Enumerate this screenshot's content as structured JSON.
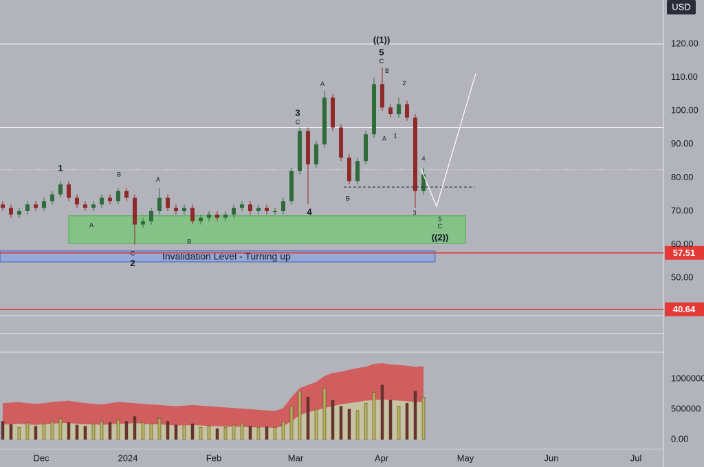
{
  "chart_data": {
    "type": "candlestick",
    "currency": "USD",
    "xlim": [
      -0.33,
      80.08
    ],
    "xticks": [
      {
        "value": 4.67,
        "label": "Dec"
      },
      {
        "value": 15.17,
        "label": "2024"
      },
      {
        "value": 25.58,
        "label": "Feb"
      },
      {
        "value": 35.5,
        "label": "Mar"
      },
      {
        "value": 45.92,
        "label": "Apr"
      },
      {
        "value": 56.08,
        "label": "May"
      },
      {
        "value": 66.5,
        "label": "Jun"
      },
      {
        "value": 76.75,
        "label": "Jul"
      }
    ],
    "ylim": [
      27.82,
      133.17
    ],
    "yticks": [
      {
        "value": 120,
        "label": "120.00"
      },
      {
        "value": 110,
        "label": "110.00"
      },
      {
        "value": 100,
        "label": "100.00"
      },
      {
        "value": 90,
        "label": "90.00"
      },
      {
        "value": 80,
        "label": "80.00"
      },
      {
        "value": 70,
        "label": "70.00"
      },
      {
        "value": 60,
        "label": "60.00"
      },
      {
        "value": 50,
        "label": "50.00"
      }
    ],
    "up_color": "#2e6b3a",
    "down_color": "#8e2a2a",
    "open": [
      72,
      71,
      69,
      70,
      72,
      71,
      73,
      75,
      78,
      74,
      72,
      71,
      72,
      74,
      73,
      76,
      74,
      66,
      67,
      70,
      74,
      71,
      70,
      71,
      67,
      68,
      69,
      68,
      69,
      71,
      72,
      70,
      71,
      70,
      70,
      73,
      82,
      94,
      84,
      90,
      104,
      95,
      86,
      79,
      85,
      93,
      108,
      101,
      99,
      102,
      98,
      76
    ],
    "high": [
      73,
      72,
      71,
      73,
      73,
      74,
      76,
      79,
      79,
      75,
      73,
      73,
      75,
      75,
      77,
      77,
      75,
      68,
      71,
      77,
      75,
      72,
      72,
      72,
      69,
      70,
      70,
      70,
      72,
      73,
      73,
      72,
      72,
      71,
      74,
      83,
      95,
      95,
      91,
      106,
      105,
      96,
      87,
      86,
      94,
      110,
      113,
      102,
      104,
      103,
      99,
      83
    ],
    "low": [
      70,
      68,
      68,
      69,
      70,
      70,
      72,
      74,
      73,
      71,
      70,
      70,
      71,
      72,
      72,
      73,
      60,
      65,
      66,
      69,
      70,
      69,
      69,
      66,
      66,
      67,
      67,
      67,
      68,
      70,
      69,
      69,
      69,
      69,
      69,
      72,
      81,
      72,
      83,
      89,
      94,
      85,
      78,
      78,
      84,
      92,
      100,
      98,
      98,
      97,
      71,
      75
    ],
    "close": [
      71,
      69,
      70,
      72,
      71,
      73,
      75,
      78,
      74,
      72,
      71,
      72,
      74,
      73,
      76,
      74,
      66,
      67,
      70,
      74,
      71,
      70,
      71,
      67,
      68,
      69,
      68,
      69,
      71,
      72,
      70,
      71,
      70,
      70,
      73,
      82,
      94,
      84,
      90,
      104,
      95,
      86,
      79,
      85,
      93,
      108,
      101,
      99,
      102,
      98,
      76,
      81
    ],
    "levels": [
      120,
      95
    ],
    "price_line": 82.4,
    "dashed_level": {
      "value": 77.2,
      "from": 41.33,
      "to": 57.17
    },
    "red_levels": [
      {
        "value": 57.51,
        "label": "57.51"
      },
      {
        "value": 40.64,
        "label": "40.64"
      }
    ],
    "zones": [
      {
        "from": 8,
        "to": 56.08,
        "low": 60.4,
        "high": 68.6,
        "color": "#7cc47f"
      },
      {
        "from": -0.33,
        "to": 52.4,
        "low": 54.8,
        "high": 58.1,
        "color": "#8fa7d8",
        "text": "Invalidation Level - Turning up"
      }
    ],
    "projection": {
      "x": [
        50.67,
        52.58,
        57.33
      ],
      "values": [
        82.8,
        71.4,
        111.2
      ]
    },
    "annotations": [
      {
        "text": "1",
        "index": 7,
        "price": 82.6,
        "size": "large"
      },
      {
        "text": "A",
        "index": 10.75,
        "price": 65.7,
        "size": "small"
      },
      {
        "text": "B",
        "index": 14.1,
        "price": 80.9,
        "size": "small"
      },
      {
        "text": "A",
        "index": 18.83,
        "price": 79.3,
        "size": "small"
      },
      {
        "text": "C",
        "index": 15.75,
        "price": 57.2,
        "size": "small"
      },
      {
        "text": "2",
        "index": 15.75,
        "price": 54.2,
        "size": "large"
      },
      {
        "text": "B",
        "index": 22.6,
        "price": 60.7,
        "size": "small"
      },
      {
        "text": "3",
        "index": 35.75,
        "price": 99.2,
        "size": "large"
      },
      {
        "text": "C",
        "index": 35.75,
        "price": 96.5,
        "size": "small"
      },
      {
        "text": "4",
        "index": 37.17,
        "price": 69.6,
        "size": "large"
      },
      {
        "text": "A",
        "index": 38.75,
        "price": 107.9,
        "size": "small"
      },
      {
        "text": "B",
        "index": 41.83,
        "price": 73.7,
        "size": "small"
      },
      {
        "text": "((1))",
        "index": 45.92,
        "price": 121,
        "size": "large"
      },
      {
        "text": "5",
        "index": 45.92,
        "price": 117.3,
        "size": "large"
      },
      {
        "text": "C",
        "index": 45.92,
        "price": 114.7,
        "size": "small"
      },
      {
        "text": "B",
        "index": 46.58,
        "price": 111.8,
        "size": "small"
      },
      {
        "text": "2",
        "index": 48.67,
        "price": 108.1,
        "size": "small"
      },
      {
        "text": "A",
        "index": 46.25,
        "price": 91.6,
        "size": "small"
      },
      {
        "text": "1",
        "index": 47.58,
        "price": 92.4,
        "size": "small"
      },
      {
        "text": "4",
        "index": 51,
        "price": 85.6,
        "size": "small"
      },
      {
        "text": "3",
        "index": 49.92,
        "price": 69.4,
        "size": "small"
      },
      {
        "text": "5",
        "index": 53,
        "price": 67.5,
        "size": "small"
      },
      {
        "text": "C",
        "index": 53,
        "price": 65.3,
        "size": "small"
      },
      {
        "text": "((2))",
        "index": 53,
        "price": 62,
        "size": "large"
      }
    ],
    "volume": {
      "ylim": [
        -238636,
        1443182
      ],
      "yticks": [
        1000000,
        500000,
        {
          "value": 0,
          "label": "0.00"
        }
      ],
      "values": [
        300000,
        250000,
        200000,
        280000,
        220000,
        260000,
        300000,
        350000,
        280000,
        240000,
        220000,
        260000,
        300000,
        280000,
        320000,
        300000,
        380000,
        280000,
        260000,
        350000,
        300000,
        240000,
        220000,
        260000,
        200000,
        220000,
        180000,
        200000,
        240000,
        260000,
        220000,
        200000,
        210000,
        200000,
        300000,
        550000,
        800000,
        700000,
        500000,
        850000,
        650000,
        550000,
        500000,
        480000,
        600000,
        780000,
        900000,
        650000,
        550000,
        600000,
        800000,
        700000
      ],
      "up_color": "#b8b25a",
      "down_color": "#6e2f2f",
      "upper_band": {
        "color": "#d45454",
        "values": [
          600000,
          610000,
          620000,
          600000,
          590000,
          600000,
          620000,
          630000,
          640000,
          620000,
          600000,
          590000,
          580000,
          600000,
          620000,
          610000,
          600000,
          590000,
          580000,
          570000,
          560000,
          550000,
          560000,
          570000,
          560000,
          550000,
          540000,
          530000,
          520000,
          510000,
          500000,
          490000,
          480000,
          470000,
          520000,
          700000,
          850000,
          900000,
          950000,
          1050000,
          1100000,
          1120000,
          1150000,
          1180000,
          1200000,
          1250000,
          1260000,
          1240000,
          1230000,
          1220000,
          1200000,
          1210000
        ]
      },
      "middle_band": {
        "color": "#c9c4a0",
        "values": [
          250000,
          250000,
          260000,
          250000,
          240000,
          250000,
          260000,
          270000,
          270000,
          260000,
          250000,
          250000,
          240000,
          250000,
          260000,
          260000,
          270000,
          260000,
          250000,
          250000,
          240000,
          230000,
          230000,
          240000,
          230000,
          220000,
          220000,
          210000,
          210000,
          210000,
          200000,
          200000,
          200000,
          190000,
          220000,
          300000,
          400000,
          450000,
          480000,
          520000,
          550000,
          580000,
          600000,
          620000,
          640000,
          650000,
          660000,
          650000,
          640000,
          630000,
          620000,
          620000
        ]
      }
    }
  }
}
